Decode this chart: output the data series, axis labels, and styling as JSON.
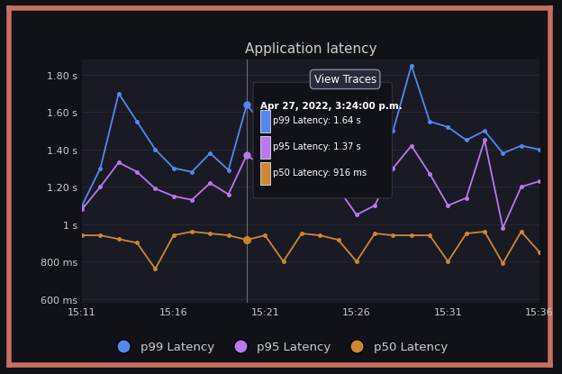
{
  "title": "Application latency",
  "bg_color": "#111118",
  "plot_bg_color": "#1a1a24",
  "border_color": "#c87060",
  "text_color": "#cccccc",
  "grid_color": "#2a2a38",
  "x_labels": [
    "15:11",
    "15:16",
    "15:21",
    "15:26",
    "15:31",
    "15:36"
  ],
  "ylim": [
    0.58,
    1.88
  ],
  "yticks": [
    0.6,
    0.8,
    1.0,
    1.2,
    1.4,
    1.6,
    1.8
  ],
  "ytick_labels": [
    "600 ms",
    "800 ms",
    "1 s",
    "1.20 s",
    "1.40 s",
    "1.60 s",
    "1.80 s"
  ],
  "p99_color": "#5588ee",
  "p95_color": "#bb77ee",
  "p50_color": "#cc8833",
  "p99_values": [
    1.1,
    1.3,
    1.7,
    1.55,
    1.4,
    1.3,
    1.28,
    1.38,
    1.29,
    1.64,
    1.52,
    1.4,
    1.45,
    1.5,
    1.3,
    1.25,
    1.3,
    1.5,
    1.85,
    1.55,
    1.52,
    1.45,
    1.5,
    1.38,
    1.42,
    1.4
  ],
  "p95_values": [
    1.08,
    1.2,
    1.33,
    1.28,
    1.19,
    1.15,
    1.13,
    1.22,
    1.16,
    1.37,
    1.3,
    1.2,
    1.25,
    1.3,
    1.19,
    1.05,
    1.1,
    1.3,
    1.42,
    1.27,
    1.1,
    1.14,
    1.45,
    0.98,
    1.2,
    1.23
  ],
  "p50_values": [
    0.94,
    0.94,
    0.92,
    0.9,
    0.76,
    0.94,
    0.96,
    0.95,
    0.94,
    0.916,
    0.94,
    0.8,
    0.95,
    0.94,
    0.916,
    0.8,
    0.95,
    0.94,
    0.94,
    0.94,
    0.8,
    0.95,
    0.96,
    0.79,
    0.96,
    0.85
  ],
  "tooltip_x_idx": 9,
  "n_points": 26,
  "x_range": [
    0,
    25
  ],
  "x_tick_positions": [
    0,
    5,
    10,
    15,
    20,
    25
  ],
  "tooltip_text_line1": "Apr 27, 2022, 3:24:00 p.m.",
  "tooltip_p99_text": "p99 Latency: 1.64 s",
  "tooltip_p95_text": "p95 Latency: 1.37 s",
  "tooltip_p50_text": "p50 Latency: 916 ms",
  "view_traces_text": "View Traces",
  "legend_labels": [
    "p99 Latency",
    "p95 Latency",
    "p50 Latency"
  ]
}
